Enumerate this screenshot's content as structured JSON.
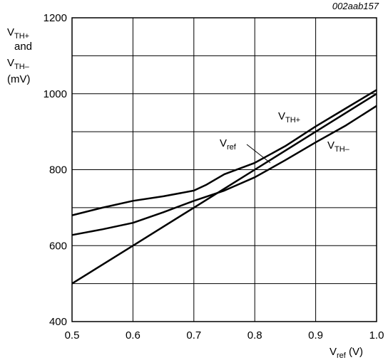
{
  "chart_data": {
    "type": "line",
    "figure_id": "002aab157",
    "ylabel": {
      "line1_main": "V",
      "line1_sub": "TH+",
      "line2": "and",
      "line3_main": "V",
      "line3_sub": "TH–",
      "line4": "(mV)"
    },
    "xlabel": {
      "main": "V",
      "sub": "ref",
      "unit": " (V)"
    },
    "xlim": [
      0.5,
      1.0
    ],
    "ylim": [
      400,
      1200
    ],
    "x_ticks": [
      "0.5",
      "0.6",
      "0.7",
      "0.8",
      "0.9",
      "1.0"
    ],
    "y_ticks": [
      "400",
      "600",
      "800",
      "1000",
      "1200"
    ],
    "x_grid": [
      0.5,
      0.6,
      0.7,
      0.8,
      0.9,
      1.0
    ],
    "y_grid": [
      400,
      500,
      600,
      700,
      800,
      900,
      1000,
      1100,
      1200
    ],
    "grid": true,
    "series": [
      {
        "name_main": "V",
        "name_sub": "ref",
        "x": [
          0.5,
          0.6,
          0.7,
          0.8,
          0.9,
          1.0
        ],
        "y": [
          500,
          600,
          700,
          800,
          900,
          1000
        ]
      },
      {
        "name_main": "V",
        "name_sub": "TH+",
        "x": [
          0.5,
          0.55,
          0.6,
          0.65,
          0.7,
          0.75,
          0.8,
          0.85,
          0.9,
          0.95,
          1.0
        ],
        "y": [
          628,
          643,
          660,
          688,
          718,
          745,
          780,
          825,
          872,
          917,
          968
        ]
      },
      {
        "name_main": "V",
        "name_sub": "TH–",
        "x": [
          0.5,
          0.55,
          0.6,
          0.65,
          0.7,
          0.72,
          0.75,
          0.8,
          0.85,
          0.9,
          0.95,
          1.0
        ],
        "y": [
          680,
          700,
          718,
          730,
          745,
          760,
          788,
          818,
          862,
          914,
          962,
          1010
        ]
      }
    ]
  }
}
